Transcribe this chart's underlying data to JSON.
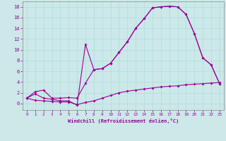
{
  "xlabel": "Windchill (Refroidissement éolien,°C)",
  "background_color": "#cce8e8",
  "line_color": "#990099",
  "xlim": [
    -0.5,
    23.5
  ],
  "ylim": [
    -1.2,
    19
  ],
  "yticks": [
    0,
    2,
    4,
    6,
    8,
    10,
    12,
    14,
    16,
    18
  ],
  "xticks": [
    0,
    1,
    2,
    3,
    4,
    5,
    6,
    7,
    8,
    9,
    10,
    11,
    12,
    13,
    14,
    15,
    16,
    17,
    18,
    19,
    20,
    21,
    22,
    23
  ],
  "line1_x": [
    0,
    1,
    2,
    3,
    4,
    5,
    6,
    7,
    8,
    9,
    10,
    11,
    12,
    13,
    14,
    15,
    16,
    17,
    18,
    19,
    20,
    21,
    22,
    23
  ],
  "line1_y": [
    1.0,
    2.2,
    2.5,
    1.0,
    1.0,
    1.1,
    1.0,
    3.8,
    6.3,
    6.5,
    7.5,
    9.5,
    11.5,
    14.0,
    15.8,
    17.8,
    18.0,
    18.1,
    18.0,
    16.6,
    13.0,
    8.5,
    7.2,
    3.7
  ],
  "line2_x": [
    0,
    1,
    2,
    3,
    4,
    5,
    6,
    7,
    8,
    9,
    10,
    11,
    12,
    13,
    14,
    15,
    16,
    17,
    18,
    19,
    20,
    21,
    22,
    23
  ],
  "line2_y": [
    1.0,
    1.8,
    1.0,
    0.8,
    0.5,
    0.5,
    -0.3,
    11.0,
    6.3,
    6.5,
    7.5,
    9.5,
    11.5,
    14.0,
    15.8,
    17.8,
    18.0,
    18.1,
    18.0,
    16.6,
    13.0,
    8.5,
    7.2,
    3.7
  ],
  "line3_x": [
    0,
    1,
    2,
    3,
    4,
    5,
    6,
    7,
    8,
    9,
    10,
    11,
    12,
    13,
    14,
    15,
    16,
    17,
    18,
    19,
    20,
    21,
    22,
    23
  ],
  "line3_y": [
    1.0,
    0.6,
    0.5,
    0.4,
    0.3,
    0.3,
    -0.2,
    0.2,
    0.5,
    1.0,
    1.5,
    2.0,
    2.3,
    2.5,
    2.7,
    2.9,
    3.1,
    3.2,
    3.3,
    3.5,
    3.6,
    3.7,
    3.8,
    3.9
  ]
}
